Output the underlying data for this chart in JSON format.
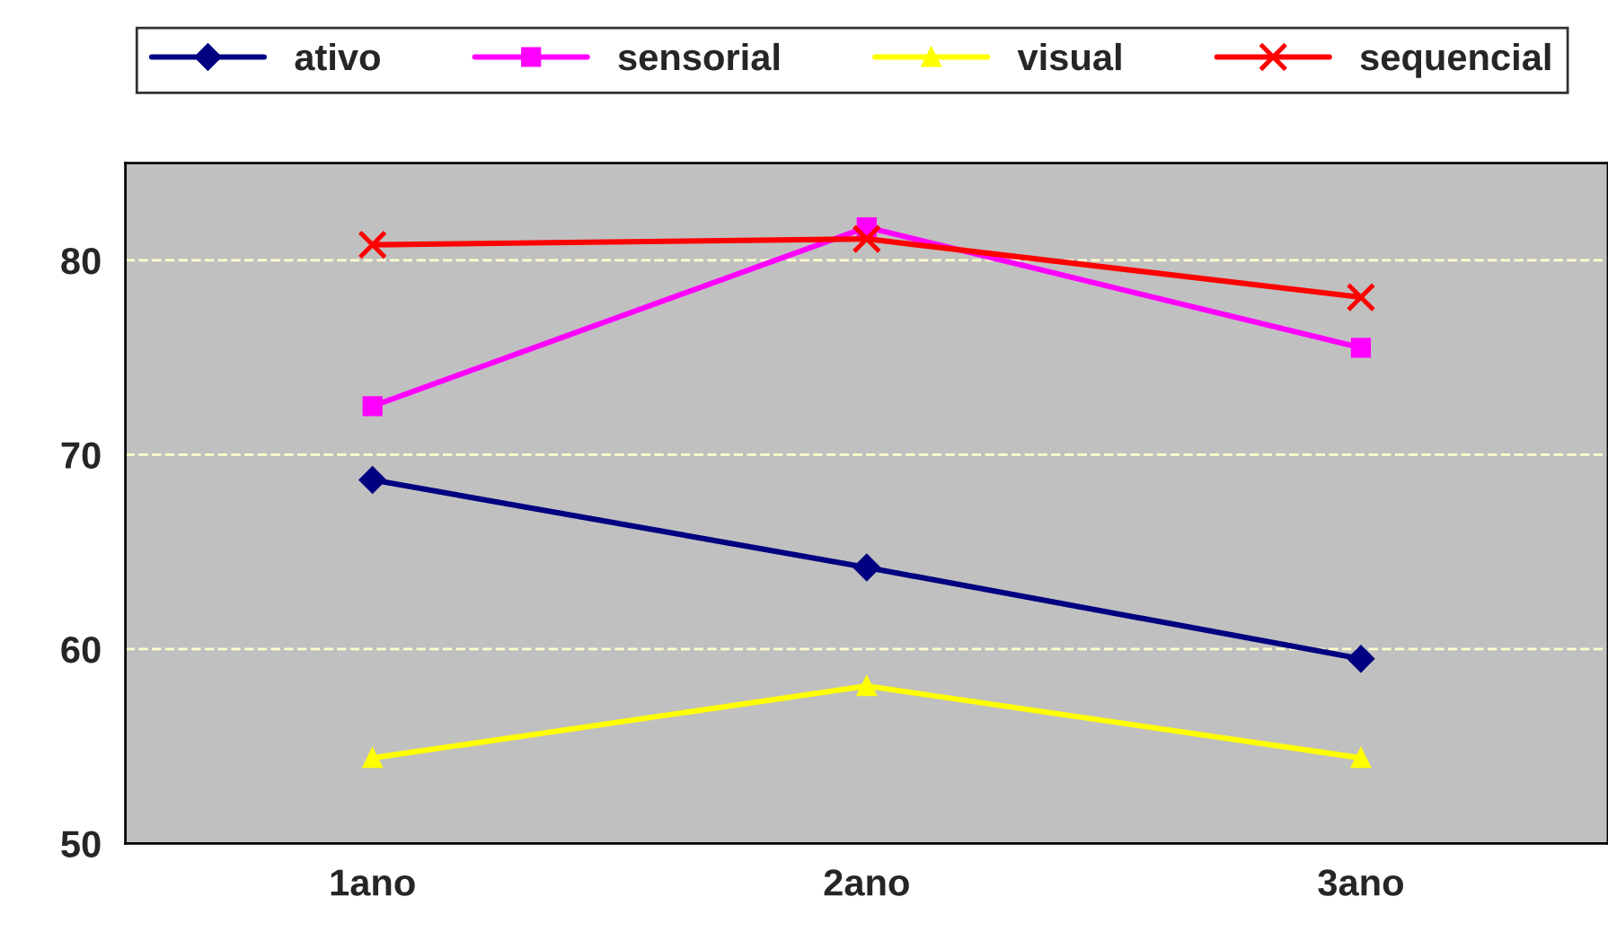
{
  "chart_data": {
    "type": "line",
    "categories": [
      "1ano",
      "2ano",
      "3ano"
    ],
    "series": [
      {
        "name": "ativo",
        "color": "#000080",
        "marker": "diamond",
        "values": [
          68.7,
          64.2,
          59.5
        ]
      },
      {
        "name": "sensorial",
        "color": "#ff00ff",
        "marker": "square",
        "values": [
          72.5,
          81.7,
          75.5
        ]
      },
      {
        "name": "visual",
        "color": "#ffff00",
        "marker": "triangle",
        "values": [
          54.4,
          58.1,
          54.4
        ]
      },
      {
        "name": "sequencial",
        "color": "#ff0000",
        "marker": "cross",
        "values": [
          80.8,
          81.1,
          78.1
        ]
      }
    ],
    "ylim": [
      50,
      85
    ],
    "yticks": [
      50,
      60,
      70,
      80
    ],
    "grid": "y",
    "legend": "top",
    "line_style": "solid"
  }
}
